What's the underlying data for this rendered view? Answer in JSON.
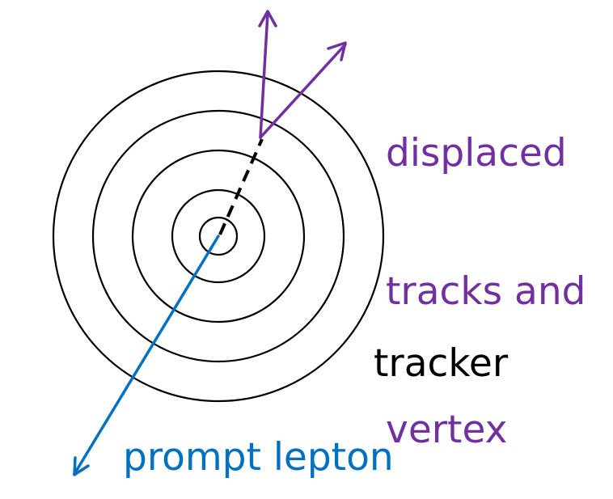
{
  "labels": {
    "displaced": [
      "displaced",
      "tracks and",
      "vertex"
    ],
    "tracker": "tracker",
    "prompt_lepton": "prompt lepton"
  },
  "colors": {
    "displaced": "#7030a0",
    "prompt": "#0070c0",
    "tracker": "#000000"
  }
}
